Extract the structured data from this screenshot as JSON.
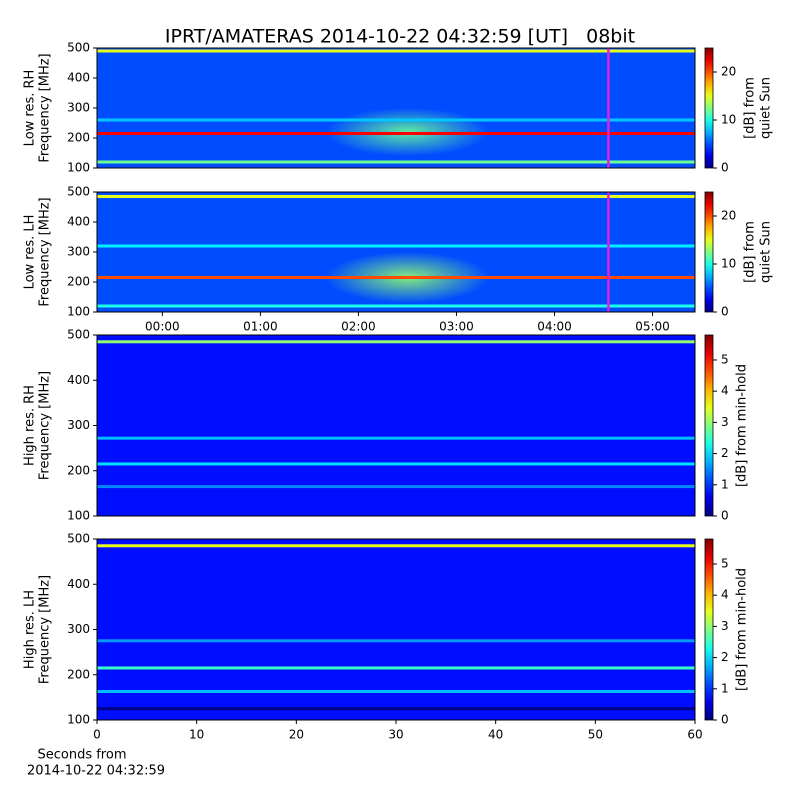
{
  "chart_data": [
    {
      "type": "spectrogram",
      "title": "IPRT/AMATERAS 2014-10-22 04:32:59 [UT]   08bit",
      "ylabel": [
        "Low res. RH",
        "Frequency [MHz]"
      ],
      "ylim": [
        100,
        500
      ],
      "yticks": [
        100,
        200,
        300,
        400,
        500
      ],
      "xlim": [
        -40,
        326
      ],
      "marker_x": 273,
      "marker_color": "#e020e0",
      "clim": [
        0,
        25
      ],
      "cticks": [
        0,
        10,
        20
      ],
      "clabel": [
        "[dB] from",
        "quiet Sun"
      ],
      "background": 5,
      "bands": [
        {
          "freq": 490,
          "value": 15
        },
        {
          "freq": 215,
          "value": 22
        },
        {
          "freq": 120,
          "value": 12
        },
        {
          "freq": 260,
          "value": 8
        }
      ],
      "burst": {
        "x": [
          100,
          200
        ],
        "y": [
          140,
          300
        ],
        "value": 12
      }
    },
    {
      "type": "spectrogram",
      "ylabel": [
        "Low res. LH",
        "Frequency [MHz]"
      ],
      "ylim": [
        100,
        500
      ],
      "yticks": [
        100,
        200,
        300,
        400,
        500
      ],
      "xlim": [
        -40,
        326
      ],
      "xticks": [
        {
          "value": 0,
          "label": "00:00"
        },
        {
          "value": 60,
          "label": "01:00"
        },
        {
          "value": 120,
          "label": "02:00"
        },
        {
          "value": 180,
          "label": "03:00"
        },
        {
          "value": 240,
          "label": "04:00"
        },
        {
          "value": 300,
          "label": "05:00"
        }
      ],
      "marker_x": 273,
      "marker_color": "#e020e0",
      "clim": [
        0,
        25
      ],
      "cticks": [
        0,
        10,
        20
      ],
      "clabel": [
        "[dB] from",
        "quiet Sun"
      ],
      "background": 5,
      "bands": [
        {
          "freq": 485,
          "value": 15
        },
        {
          "freq": 215,
          "value": 20
        },
        {
          "freq": 120,
          "value": 10
        },
        {
          "freq": 320,
          "value": 9
        }
      ],
      "burst": {
        "x": [
          100,
          200
        ],
        "y": [
          130,
          300
        ],
        "value": 13
      }
    },
    {
      "type": "spectrogram",
      "ylabel": [
        "High res. RH",
        "Frequency [MHz]"
      ],
      "ylim": [
        100,
        500
      ],
      "yticks": [
        100,
        200,
        300,
        400,
        500
      ],
      "xlim": [
        0,
        60
      ],
      "clim": [
        0,
        5.8
      ],
      "cticks": [
        0,
        1,
        2,
        3,
        4,
        5
      ],
      "clabel": [
        "[dB] from min-hold"
      ],
      "background": 0.8,
      "bands": [
        {
          "freq": 485,
          "value": 3
        },
        {
          "freq": 215,
          "value": 2
        },
        {
          "freq": 272,
          "value": 1.8
        },
        {
          "freq": 165,
          "value": 1.5
        }
      ]
    },
    {
      "type": "spectrogram",
      "ylabel": [
        "High res. LH",
        "Frequency [MHz]"
      ],
      "ylim": [
        100,
        500
      ],
      "yticks": [
        100,
        200,
        300,
        400,
        500
      ],
      "xlim": [
        0,
        60
      ],
      "xticks": [
        0,
        10,
        20,
        30,
        40,
        50,
        60
      ],
      "xlabel": [
        "Seconds from",
        "2014-10-22 04:32:59"
      ],
      "clim": [
        0,
        5.8
      ],
      "cticks": [
        0,
        1,
        2,
        3,
        4,
        5
      ],
      "clabel": [
        "[dB] from min-hold"
      ],
      "background": 0.8,
      "bands": [
        {
          "freq": 485,
          "value": 3.5
        },
        {
          "freq": 215,
          "value": 2.5
        },
        {
          "freq": 275,
          "value": 1.6
        },
        {
          "freq": 163,
          "value": 1.8
        },
        {
          "freq": 125,
          "value": 0
        }
      ]
    }
  ]
}
